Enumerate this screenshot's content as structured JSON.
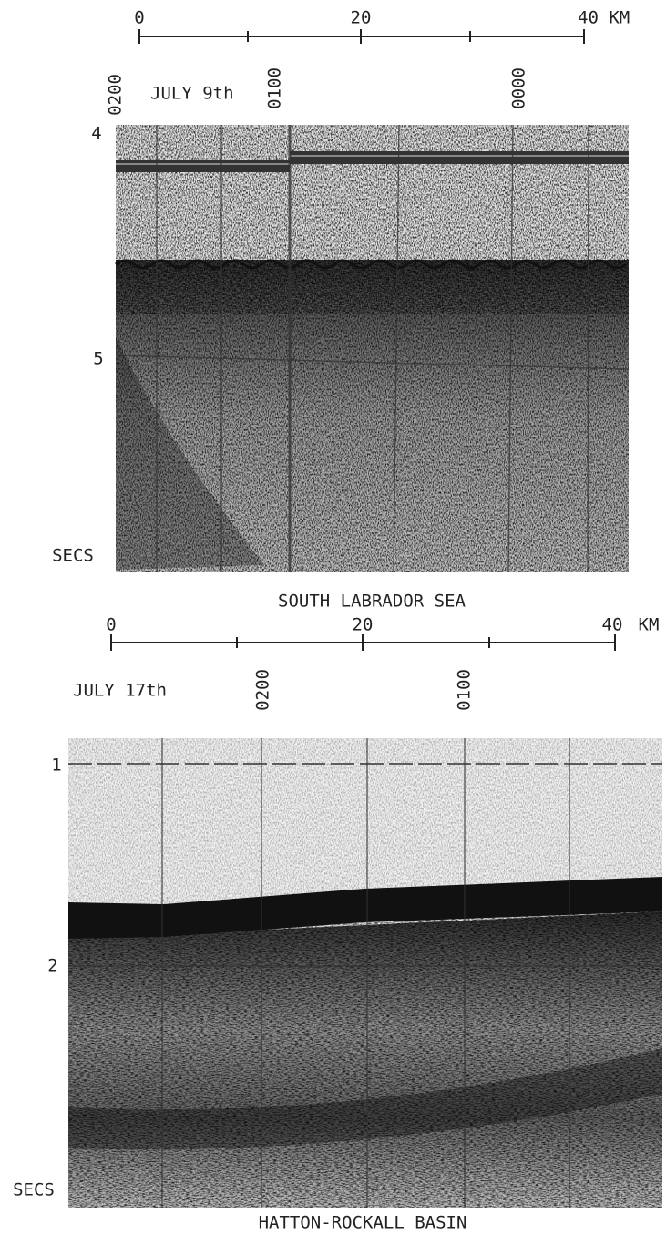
{
  "panels": [
    {
      "scale_labels": [
        "0",
        "20",
        "40 KM"
      ],
      "time_labels": [
        "0200",
        "JULY 9th",
        "0100",
        "0000"
      ],
      "depth_labels": [
        "4",
        "5",
        "SECS"
      ],
      "caption": "SOUTH LABRADOR SEA"
    },
    {
      "scale_labels": [
        "0",
        "20",
        "40",
        "KM"
      ],
      "time_labels": [
        "JULY 17th",
        "0200",
        "0100"
      ],
      "depth_labels": [
        "1",
        "2",
        "SECS"
      ],
      "caption": "HATTON-ROCKALL BASIN"
    }
  ]
}
